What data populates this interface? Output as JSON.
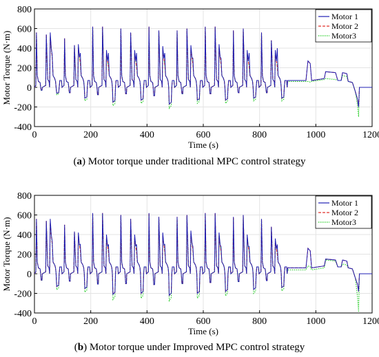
{
  "chart_data": [
    {
      "type": "line",
      "caption": {
        "label": "a",
        "text": " Motor torque under traditional MPC control strategy"
      },
      "xlabel": "Time (s)",
      "ylabel": "Motor Torque (N·m)",
      "xlim": [
        0,
        1200
      ],
      "ylim": [
        -400,
        800
      ],
      "xticks": [
        "0",
        "200",
        "400",
        "600",
        "800",
        "1000",
        "1200"
      ],
      "yticks": [
        "-400",
        "-200",
        "0",
        "200",
        "400",
        "600",
        "800"
      ],
      "grid": true,
      "legend_position": "top-right",
      "series": [
        {
          "name": "Motor 1",
          "color": "#1f1fb4",
          "dash": "solid"
        },
        {
          "name": "Motor 2",
          "color": "#e0302a",
          "dash": "dashed"
        },
        {
          "name": "Motor3",
          "color": "#22cc22",
          "dash": "dotted"
        }
      ],
      "cycles": {
        "starts": [
          0,
          100,
          200,
          300,
          400,
          500,
          600,
          700,
          800
        ],
        "peak1": [
          560,
          500,
          620,
          600,
          620,
          580,
          620,
          580,
          560
        ],
        "peak2": [
          540,
          430,
          620,
          560,
          580,
          600,
          620,
          600,
          480
        ],
        "peak3": [
          560,
          440,
          380,
          380,
          420,
          430,
          440,
          380,
          380
        ],
        "m1_extra": [
          0,
          350,
          350,
          350,
          350,
          300,
          300,
          350,
          400
        ],
        "neg": [
          -60,
          -110,
          -150,
          -130,
          -170,
          -130,
          -130,
          -110,
          -110
        ]
      },
      "tail": [
        {
          "x": 900,
          "m1": 70,
          "m3": 60
        },
        {
          "x": 975,
          "m1": 270,
          "m3": 60
        },
        {
          "x": 1040,
          "m1": 160,
          "m3": 90
        },
        {
          "x": 1095,
          "m1": 150,
          "m3": 120
        },
        {
          "x": 1150,
          "m1": -200,
          "m3": -300
        }
      ]
    },
    {
      "type": "line",
      "caption": {
        "label": "b",
        "text": " Motor torque under Improved MPC control strategy"
      },
      "xlabel": "Time (s)",
      "ylabel": "Motor Torque (N·m)",
      "xlim": [
        0,
        1200
      ],
      "ylim": [
        -400,
        800
      ],
      "xticks": [
        "0",
        "200",
        "400",
        "600",
        "800",
        "1000",
        "1200"
      ],
      "yticks": [
        "-400",
        "-200",
        "0",
        "200",
        "400",
        "600",
        "800"
      ],
      "grid": true,
      "legend_position": "top-right",
      "series": [
        {
          "name": "Motor 1",
          "color": "#1f1fb4",
          "dash": "solid"
        },
        {
          "name": "Motor 2",
          "color": "#e0302a",
          "dash": "dashed"
        },
        {
          "name": "Motor3",
          "color": "#22cc22",
          "dash": "dotted"
        }
      ],
      "cycles": {
        "starts": [
          0,
          100,
          200,
          300,
          400,
          500,
          600,
          700,
          800
        ],
        "peak1": [
          560,
          500,
          620,
          600,
          620,
          580,
          620,
          580,
          560
        ],
        "peak2": [
          540,
          430,
          620,
          560,
          580,
          600,
          620,
          600,
          480
        ],
        "peak3": [
          560,
          420,
          400,
          400,
          420,
          440,
          420,
          400,
          360
        ],
        "m1_extra": [
          0,
          300,
          300,
          300,
          300,
          280,
          280,
          280,
          300
        ],
        "neg": [
          -130,
          -150,
          -210,
          -200,
          -220,
          -200,
          -180,
          -160,
          -140
        ]
      },
      "tail": [
        {
          "x": 900,
          "m1": 60,
          "m3": 40
        },
        {
          "x": 975,
          "m1": 260,
          "m3": 80
        },
        {
          "x": 1040,
          "m1": 150,
          "m3": 140
        },
        {
          "x": 1095,
          "m1": 140,
          "m3": 100
        },
        {
          "x": 1150,
          "m1": -180,
          "m3": -390
        }
      ]
    }
  ]
}
